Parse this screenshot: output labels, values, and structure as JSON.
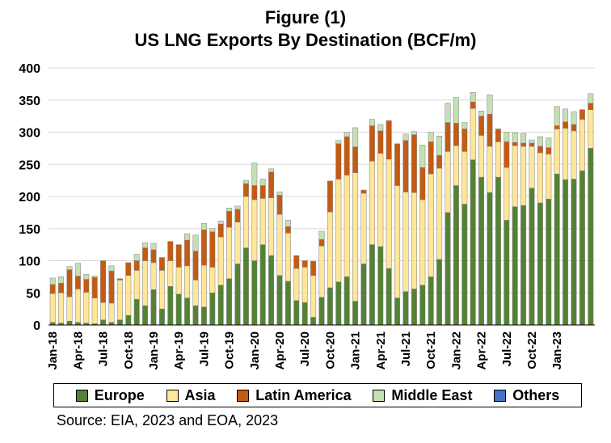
{
  "title_line1": "Figure (1)",
  "title_line2": "US LNG Exports By Destination (BCF/m)",
  "source": "Source: EIA, 2023 and EOA, 2023",
  "chart_data": {
    "type": "bar",
    "stacked": true,
    "title": "US LNG Exports By Destination (BCF/m)",
    "ylim": [
      0,
      400
    ],
    "yticks": [
      0,
      50,
      100,
      150,
      200,
      250,
      300,
      350,
      400
    ],
    "grid": true,
    "legend_position": "bottom",
    "x_tick_labels": [
      "Jan-18",
      "Apr-18",
      "Jul-18",
      "Oct-18",
      "Jan-19",
      "Apr-19",
      "Jul-19",
      "Oct-19",
      "Jan-20",
      "Apr-20",
      "Jul-20",
      "Oct-20",
      "Jan-21",
      "Apr-21",
      "Jul-21",
      "Oct-21",
      "Jan-22",
      "Apr-22",
      "Jul-22",
      "Oct-22",
      "Jan-23"
    ],
    "categories": [
      "Jan-18",
      "Feb-18",
      "Mar-18",
      "Apr-18",
      "May-18",
      "Jun-18",
      "Jul-18",
      "Aug-18",
      "Sep-18",
      "Oct-18",
      "Nov-18",
      "Dec-18",
      "Jan-19",
      "Feb-19",
      "Mar-19",
      "Apr-19",
      "May-19",
      "Jun-19",
      "Jul-19",
      "Aug-19",
      "Sep-19",
      "Oct-19",
      "Nov-19",
      "Dec-19",
      "Jan-20",
      "Feb-20",
      "Mar-20",
      "Apr-20",
      "May-20",
      "Jun-20",
      "Jul-20",
      "Aug-20",
      "Sep-20",
      "Oct-20",
      "Nov-20",
      "Dec-20",
      "Jan-21",
      "Feb-21",
      "Mar-21",
      "Apr-21",
      "May-21",
      "Jun-21",
      "Jul-21",
      "Aug-21",
      "Sep-21",
      "Oct-21",
      "Nov-21",
      "Dec-21",
      "Jan-22",
      "Feb-22",
      "Mar-22",
      "Apr-22",
      "May-22",
      "Jun-22",
      "Jul-22",
      "Aug-22",
      "Sep-22",
      "Oct-22",
      "Nov-22",
      "Dec-22",
      "Jan-23",
      "Feb-23",
      "Mar-23",
      "Apr-23",
      "May-23"
    ],
    "series": [
      {
        "name": "Europe",
        "color": "#548235",
        "values": [
          4,
          3,
          6,
          4,
          3,
          2,
          8,
          4,
          8,
          15,
          40,
          30,
          55,
          25,
          60,
          48,
          42,
          30,
          28,
          50,
          62,
          72,
          95,
          120,
          100,
          125,
          108,
          77,
          68,
          38,
          35,
          12,
          43,
          58,
          67,
          75,
          37,
          95,
          125,
          122,
          88,
          42,
          52,
          56,
          62,
          75,
          102,
          175,
          217,
          188,
          257,
          230,
          206,
          230,
          163,
          184,
          186,
          213,
          190,
          196,
          235,
          226,
          227,
          240,
          275
        ]
      },
      {
        "name": "Asia",
        "color": "#FFE699",
        "values": [
          45,
          47,
          38,
          52,
          48,
          40,
          27,
          30,
          62,
          62,
          45,
          70,
          42,
          60,
          40,
          42,
          50,
          40,
          65,
          40,
          75,
          80,
          65,
          80,
          95,
          72,
          90,
          95,
          75,
          50,
          55,
          65,
          80,
          118,
          160,
          158,
          200,
          110,
          130,
          145,
          170,
          175,
          155,
          150,
          133,
          160,
          142,
          95,
          62,
          82,
          80,
          65,
          72,
          55,
          82,
          95,
          92,
          65,
          78,
          70,
          70,
          80,
          75,
          80,
          60
        ]
      },
      {
        "name": "Latin America",
        "color": "#C55A11",
        "values": [
          14,
          15,
          42,
          20,
          20,
          32,
          65,
          50,
          2,
          20,
          15,
          20,
          20,
          20,
          30,
          35,
          40,
          45,
          55,
          55,
          20,
          25,
          20,
          20,
          22,
          20,
          40,
          30,
          10,
          20,
          10,
          22,
          10,
          48,
          55,
          60,
          40,
          5,
          55,
          35,
          60,
          65,
          80,
          90,
          50,
          50,
          20,
          45,
          35,
          35,
          10,
          30,
          50,
          20,
          40,
          5,
          5,
          5,
          10,
          10,
          5,
          10,
          10,
          15,
          10
        ]
      },
      {
        "name": "Middle East",
        "color": "#C5E0B4",
        "values": [
          10,
          10,
          5,
          20,
          8,
          2,
          0,
          8,
          0,
          0,
          10,
          8,
          10,
          0,
          0,
          0,
          10,
          25,
          10,
          5,
          5,
          5,
          5,
          5,
          35,
          10,
          5,
          5,
          10,
          0,
          0,
          0,
          13,
          0,
          5,
          7,
          30,
          0,
          10,
          10,
          0,
          0,
          10,
          5,
          35,
          15,
          30,
          30,
          40,
          10,
          15,
          8,
          30,
          0,
          15,
          15,
          15,
          5,
          15,
          15,
          30,
          20,
          20,
          0,
          15
        ]
      },
      {
        "name": "Others",
        "color": "#4472C4",
        "values": [
          0,
          0,
          0,
          0,
          0,
          0,
          0,
          0,
          0,
          0,
          0,
          0,
          0,
          0,
          0,
          0,
          0,
          0,
          0,
          0,
          0,
          0,
          0,
          0,
          0,
          0,
          0,
          0,
          0,
          0,
          0,
          0,
          0,
          0,
          0,
          0,
          0,
          0,
          0,
          0,
          0,
          0,
          0,
          0,
          0,
          0,
          0,
          0,
          0,
          0,
          0,
          0,
          0,
          0,
          0,
          0,
          0,
          0,
          0,
          0,
          0,
          0,
          0,
          0,
          0
        ]
      }
    ]
  }
}
